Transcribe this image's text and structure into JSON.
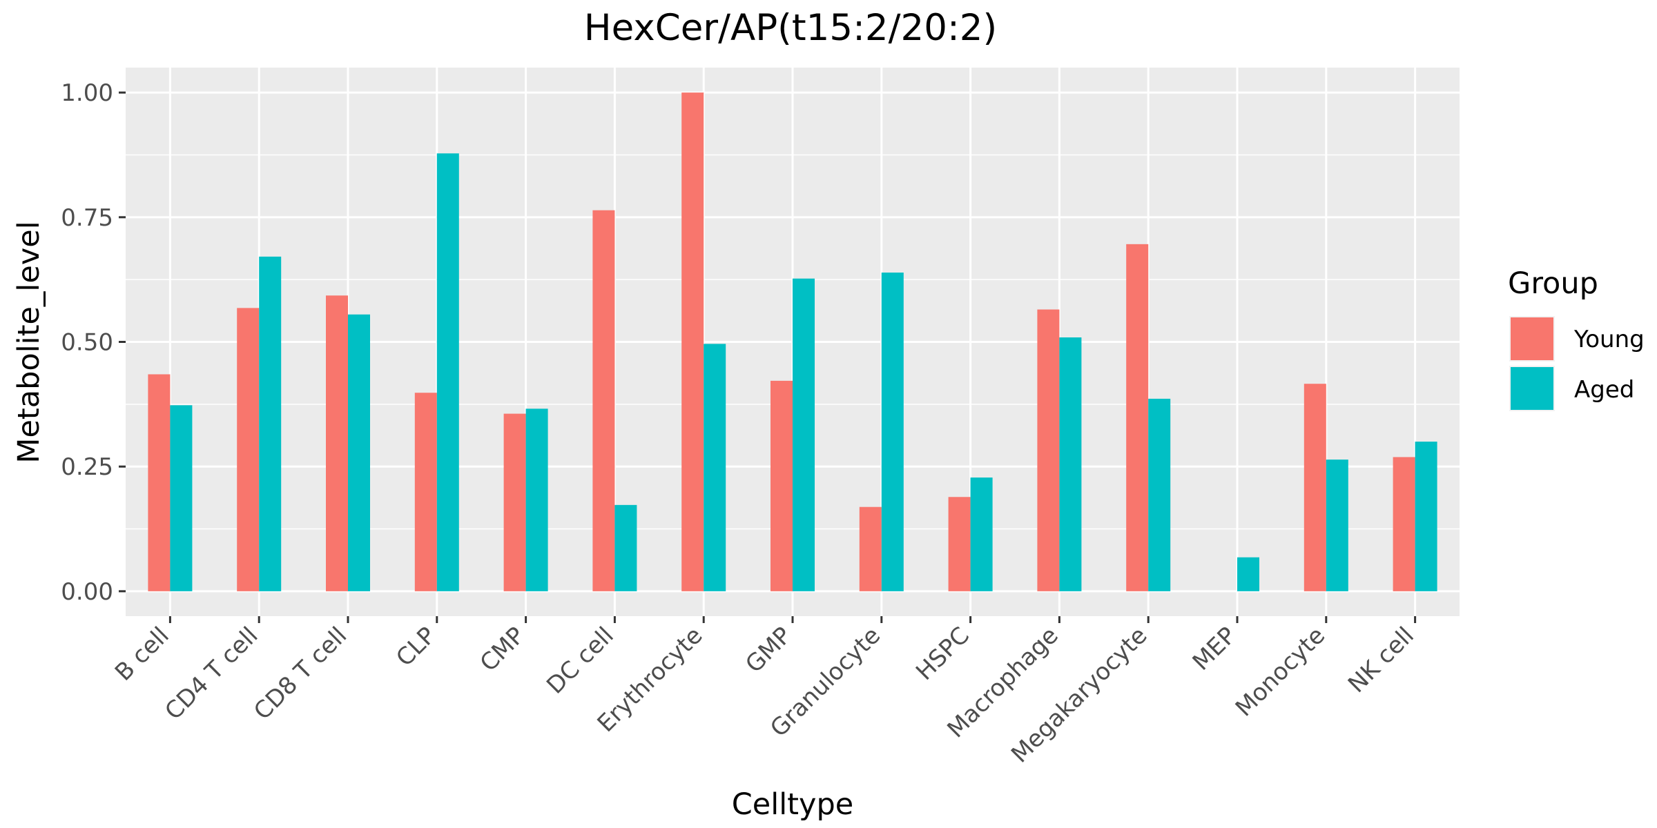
{
  "chart_data": {
    "type": "bar",
    "title": "HexCer/AP(t15:2/20:2)",
    "xlabel": "Celltype",
    "ylabel": "Metabolite_level",
    "categories": [
      "B cell",
      "CD4 T cell",
      "CD8 T cell",
      "CLP",
      "CMP",
      "DC cell",
      "Erythrocyte",
      "GMP",
      "Granulocyte",
      "HSPC",
      "Macrophage",
      "Megakaryocyte",
      "MEP",
      "Monocyte",
      "NK cell"
    ],
    "series": [
      {
        "name": "Young",
        "color": "#F8766D",
        "values": [
          0.435,
          0.568,
          0.593,
          0.398,
          0.356,
          0.764,
          1.0,
          0.422,
          0.169,
          0.189,
          0.565,
          0.696,
          0.0,
          0.416,
          0.269
        ]
      },
      {
        "name": "Aged",
        "color": "#00BFC4",
        "values": [
          0.373,
          0.671,
          0.555,
          0.878,
          0.366,
          0.173,
          0.496,
          0.627,
          0.639,
          0.228,
          0.509,
          0.386,
          0.068,
          0.264,
          0.3
        ]
      }
    ],
    "ylim": [
      -0.05,
      1.05
    ],
    "yticks": [
      "0.00",
      "0.25",
      "0.50",
      "0.75",
      "1.00"
    ],
    "legend": {
      "title": "Group",
      "position": "right"
    },
    "grid": true,
    "panel_background": "#EBEBEB"
  }
}
